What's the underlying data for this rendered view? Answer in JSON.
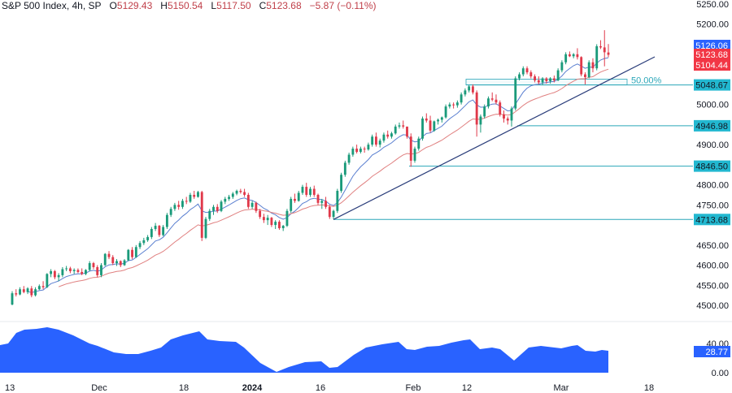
{
  "header": {
    "symbol": "S&P 500 Index, 4h, SP",
    "open_label": "O",
    "open": "5129.43",
    "high_label": "H",
    "high": "5150.54",
    "low_label": "L",
    "low": "5117.50",
    "close_label": "C",
    "close": "5123.68",
    "change": "−5.87 (−0.11%)"
  },
  "colors": {
    "up": "#1a9a7a",
    "down": "#e0394a",
    "ma_fast": "#5a7fd0",
    "ma_slow": "#e08080",
    "trendline": "#2a3d7a",
    "level_line": "#2aa6b8",
    "level_tag": "#22b8d0",
    "price_tag_blue": "#2962ff",
    "price_tag_red": "#f23645",
    "oscillator_fill": "#2962ff"
  },
  "price_axis": {
    "ticks": [
      "5250.00",
      "5200.00",
      "5000.00",
      "4900.00",
      "4800.00",
      "4750.00",
      "4650.00",
      "4600.00",
      "4550.00",
      "4500.00"
    ],
    "tags": [
      {
        "label": "5126.06",
        "kind": "blue"
      },
      {
        "label": "5123.68",
        "kind": "red"
      },
      {
        "label": "5104.44",
        "kind": "red"
      },
      {
        "label": "5048.67",
        "kind": "level"
      },
      {
        "label": "4946.98",
        "kind": "level"
      },
      {
        "label": "4846.50",
        "kind": "level"
      },
      {
        "label": "4713.68",
        "kind": "level"
      }
    ]
  },
  "oscillator_axis": {
    "ticks": [
      "40.00",
      "0.00"
    ],
    "tag": "28.77"
  },
  "time_axis": {
    "labels": [
      "13",
      "Dec",
      "18",
      "2024",
      "16",
      "Feb",
      "12",
      "Mar",
      "18"
    ]
  },
  "annotations": {
    "fib_label": "50.00%"
  },
  "chart_data": {
    "type": "candlestick",
    "title": "S&P 500 Index, 4h, SP",
    "ohlc_last": {
      "open": 5129.43,
      "high": 5150.54,
      "low": 5117.5,
      "close": 5123.68,
      "change": -5.87,
      "change_pct": -0.11
    },
    "ylim": [
      4460,
      5270
    ],
    "y_ticks": [
      4500,
      4550,
      4600,
      4650,
      4700,
      4750,
      4800,
      4850,
      4900,
      4950,
      5000,
      5050,
      5100,
      5150,
      5200,
      5250
    ],
    "x_labels": [
      "13",
      "Dec",
      "18",
      "2024",
      "16",
      "Feb",
      "12",
      "Mar",
      "18"
    ],
    "horizontal_levels": [
      5048.67,
      4946.98,
      4846.5,
      4713.68
    ],
    "moving_averages": {
      "fast_last": 5126.06,
      "slow_last": 5104.44
    },
    "trendline": {
      "from": {
        "date": "Jan 17",
        "price": 4713.68
      },
      "to": {
        "date": "Mar 12",
        "price": 5115
      }
    },
    "fib_retracement": {
      "level": "50.00%",
      "price_top": 5063,
      "price_level": 5048.67
    },
    "candles_approx": [
      [
        4502,
        4535,
        4500,
        4530
      ],
      [
        4530,
        4540,
        4522,
        4527
      ],
      [
        4527,
        4545,
        4525,
        4540
      ],
      [
        4540,
        4548,
        4530,
        4533
      ],
      [
        4533,
        4545,
        4528,
        4542
      ],
      [
        4542,
        4548,
        4520,
        4525
      ],
      [
        4525,
        4545,
        4522,
        4540
      ],
      [
        4540,
        4552,
        4538,
        4548
      ],
      [
        4548,
        4560,
        4540,
        4545
      ],
      [
        4545,
        4580,
        4543,
        4578
      ],
      [
        4578,
        4590,
        4570,
        4585
      ],
      [
        4585,
        4588,
        4565,
        4570
      ],
      [
        4570,
        4580,
        4560,
        4575
      ],
      [
        4575,
        4595,
        4570,
        4590
      ],
      [
        4590,
        4598,
        4585,
        4592
      ],
      [
        4592,
        4596,
        4580,
        4585
      ],
      [
        4585,
        4592,
        4578,
        4588
      ],
      [
        4588,
        4592,
        4580,
        4583
      ],
      [
        4583,
        4592,
        4575,
        4578
      ],
      [
        4578,
        4590,
        4575,
        4588
      ],
      [
        4588,
        4610,
        4585,
        4605
      ],
      [
        4605,
        4608,
        4590,
        4595
      ],
      [
        4595,
        4600,
        4570,
        4575
      ],
      [
        4575,
        4605,
        4570,
        4600
      ],
      [
        4600,
        4630,
        4598,
        4628
      ],
      [
        4628,
        4635,
        4615,
        4620
      ],
      [
        4620,
        4625,
        4600,
        4605
      ],
      [
        4605,
        4615,
        4598,
        4610
      ],
      [
        4610,
        4612,
        4595,
        4600
      ],
      [
        4600,
        4615,
        4598,
        4612
      ],
      [
        4612,
        4640,
        4610,
        4638
      ],
      [
        4638,
        4645,
        4615,
        4620
      ],
      [
        4620,
        4650,
        4618,
        4645
      ],
      [
        4645,
        4660,
        4640,
        4655
      ],
      [
        4655,
        4668,
        4650,
        4662
      ],
      [
        4662,
        4675,
        4658,
        4670
      ],
      [
        4670,
        4695,
        4665,
        4690
      ],
      [
        4690,
        4705,
        4685,
        4698
      ],
      [
        4698,
        4700,
        4670,
        4675
      ],
      [
        4675,
        4700,
        4672,
        4695
      ],
      [
        4695,
        4730,
        4690,
        4725
      ],
      [
        4725,
        4745,
        4720,
        4740
      ],
      [
        4740,
        4755,
        4735,
        4750
      ],
      [
        4750,
        4760,
        4738,
        4745
      ],
      [
        4745,
        4765,
        4740,
        4760
      ],
      [
        4760,
        4770,
        4752,
        4758
      ],
      [
        4758,
        4780,
        4755,
        4775
      ],
      [
        4775,
        4785,
        4765,
        4770
      ],
      [
        4770,
        4785,
        4768,
        4782
      ],
      [
        4782,
        4785,
        4660,
        4668
      ],
      [
        4668,
        4720,
        4665,
        4715
      ],
      [
        4715,
        4740,
        4710,
        4735
      ],
      [
        4735,
        4750,
        4725,
        4745
      ],
      [
        4745,
        4752,
        4730,
        4735
      ],
      [
        4735,
        4762,
        4732,
        4758
      ],
      [
        4758,
        4770,
        4752,
        4765
      ],
      [
        4765,
        4775,
        4760,
        4770
      ],
      [
        4770,
        4782,
        4765,
        4778
      ],
      [
        4778,
        4788,
        4774,
        4785
      ],
      [
        4785,
        4790,
        4778,
        4782
      ],
      [
        4782,
        4790,
        4770,
        4775
      ],
      [
        4775,
        4780,
        4740,
        4745
      ],
      [
        4745,
        4760,
        4740,
        4755
      ],
      [
        4755,
        4758,
        4730,
        4735
      ],
      [
        4735,
        4740,
        4715,
        4720
      ],
      [
        4720,
        4728,
        4705,
        4712
      ],
      [
        4712,
        4725,
        4700,
        4718
      ],
      [
        4718,
        4720,
        4695,
        4700
      ],
      [
        4700,
        4712,
        4690,
        4708
      ],
      [
        4708,
        4712,
        4688,
        4692
      ],
      [
        4692,
        4700,
        4685,
        4698
      ],
      [
        4698,
        4740,
        4695,
        4735
      ],
      [
        4735,
        4770,
        4730,
        4765
      ],
      [
        4765,
        4778,
        4755,
        4760
      ],
      [
        4760,
        4785,
        4758,
        4780
      ],
      [
        4780,
        4800,
        4775,
        4795
      ],
      [
        4795,
        4805,
        4770,
        4775
      ],
      [
        4775,
        4795,
        4770,
        4790
      ],
      [
        4790,
        4798,
        4770,
        4775
      ],
      [
        4775,
        4778,
        4750,
        4755
      ],
      [
        4755,
        4765,
        4740,
        4760
      ],
      [
        4760,
        4770,
        4740,
        4745
      ],
      [
        4745,
        4750,
        4715,
        4720
      ],
      [
        4720,
        4738,
        4714,
        4735
      ],
      [
        4735,
        4790,
        4730,
        4785
      ],
      [
        4785,
        4830,
        4780,
        4825
      ],
      [
        4825,
        4860,
        4820,
        4855
      ],
      [
        4855,
        4880,
        4850,
        4875
      ],
      [
        4875,
        4895,
        4870,
        4890
      ],
      [
        4890,
        4900,
        4878,
        4882
      ],
      [
        4882,
        4895,
        4878,
        4890
      ],
      [
        4890,
        4895,
        4880,
        4888
      ],
      [
        4888,
        4905,
        4885,
        4900
      ],
      [
        4900,
        4925,
        4895,
        4920
      ],
      [
        4920,
        4930,
        4895,
        4900
      ],
      [
        4900,
        4915,
        4893,
        4910
      ],
      [
        4910,
        4930,
        4905,
        4925
      ],
      [
        4925,
        4935,
        4915,
        4920
      ],
      [
        4920,
        4932,
        4915,
        4928
      ],
      [
        4928,
        4950,
        4925,
        4945
      ],
      [
        4945,
        4955,
        4940,
        4948
      ],
      [
        4948,
        4960,
        4940,
        4945
      ],
      [
        4945,
        4925,
        4915,
        4920
      ],
      [
        4920,
        4928,
        4845,
        4860
      ],
      [
        4860,
        4895,
        4855,
        4890
      ],
      [
        4890,
        4920,
        4885,
        4915
      ],
      [
        4915,
        4970,
        4910,
        4965
      ],
      [
        4965,
        4978,
        4955,
        4960
      ],
      [
        4960,
        4972,
        4930,
        4935
      ],
      [
        4935,
        4960,
        4932,
        4958
      ],
      [
        4958,
        4965,
        4950,
        4962
      ],
      [
        4962,
        4970,
        4955,
        4968
      ],
      [
        4968,
        5000,
        4965,
        4995
      ],
      [
        4995,
        5005,
        4990,
        5000
      ],
      [
        5000,
        5005,
        4990,
        4998
      ],
      [
        4998,
        5010,
        4992,
        5005
      ],
      [
        5005,
        5030,
        5000,
        5025
      ],
      [
        5025,
        5040,
        5020,
        5035
      ],
      [
        5035,
        5048,
        5030,
        5045
      ],
      [
        5045,
        5050,
        5025,
        5030
      ],
      [
        5030,
        5035,
        4920,
        4950
      ],
      [
        4950,
        4975,
        4930,
        4970
      ],
      [
        4970,
        5000,
        4965,
        4995
      ],
      [
        4995,
        5020,
        4990,
        5015
      ],
      [
        5015,
        5030,
        5008,
        5012
      ],
      [
        5012,
        5025,
        5000,
        5005
      ],
      [
        5005,
        5010,
        4970,
        4975
      ],
      [
        4975,
        4985,
        4955,
        4965
      ],
      [
        4965,
        4970,
        4950,
        4960
      ],
      [
        4960,
        4995,
        4945,
        4990
      ],
      [
        4990,
        5070,
        4985,
        5065
      ],
      [
        5065,
        5080,
        5060,
        5075
      ],
      [
        5075,
        5095,
        5070,
        5090
      ],
      [
        5090,
        5095,
        5075,
        5080
      ],
      [
        5080,
        5085,
        5065,
        5070
      ],
      [
        5070,
        5075,
        5055,
        5060
      ],
      [
        5060,
        5070,
        5050,
        5055
      ],
      [
        5055,
        5068,
        5048,
        5065
      ],
      [
        5065,
        5068,
        5052,
        5058
      ],
      [
        5058,
        5068,
        5052,
        5065
      ],
      [
        5065,
        5072,
        5055,
        5060
      ],
      [
        5060,
        5090,
        5058,
        5085
      ],
      [
        5085,
        5110,
        5080,
        5105
      ],
      [
        5105,
        5130,
        5100,
        5125
      ],
      [
        5125,
        5132,
        5118,
        5120
      ],
      [
        5120,
        5128,
        5115,
        5125
      ],
      [
        5125,
        5140,
        5112,
        5118
      ],
      [
        5118,
        5120,
        5070,
        5075
      ],
      [
        5075,
        5080,
        5050,
        5068
      ],
      [
        5068,
        5110,
        5065,
        5105
      ],
      [
        5105,
        5115,
        5080,
        5090
      ],
      [
        5090,
        5150,
        5085,
        5145
      ],
      [
        5145,
        5160,
        5138,
        5142
      ],
      [
        5142,
        5185,
        5095,
        5130
      ],
      [
        5129.43,
        5150.54,
        5117.5,
        5123.68
      ]
    ],
    "oscillator": {
      "ylim": [
        0,
        55
      ],
      "last": 28.77,
      "ticks": [
        40,
        0
      ]
    }
  }
}
